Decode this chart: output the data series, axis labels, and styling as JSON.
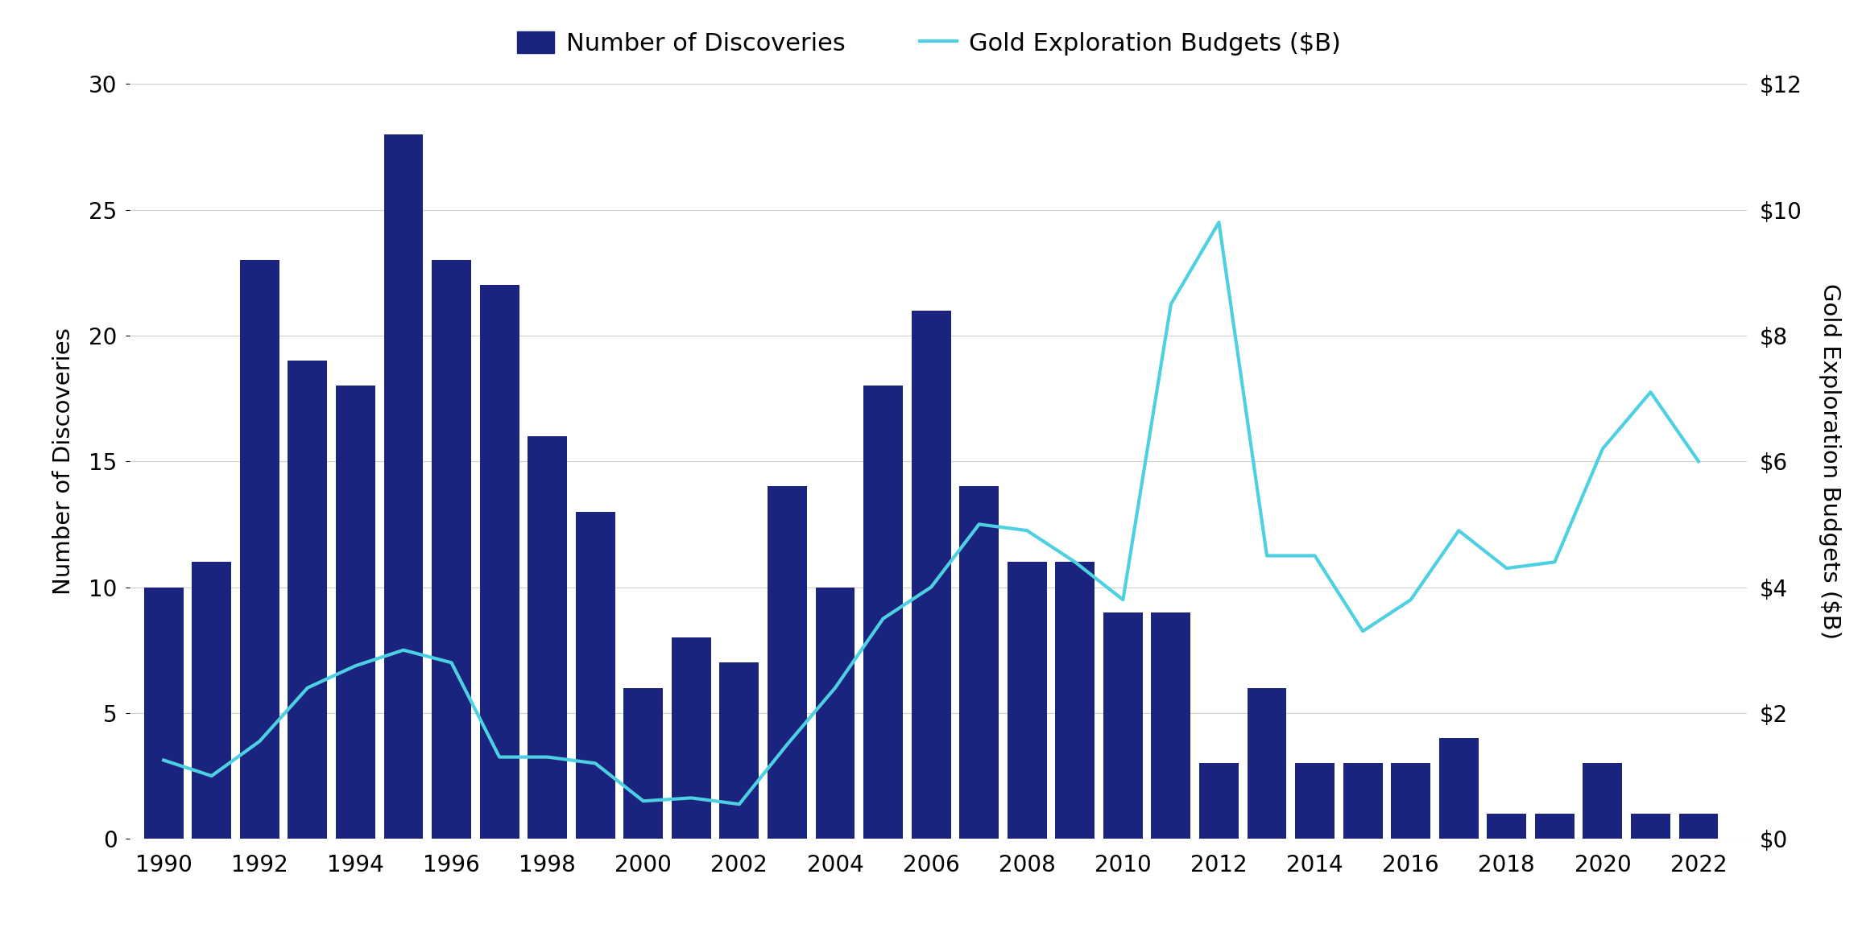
{
  "years": [
    1990,
    1991,
    1992,
    1993,
    1994,
    1995,
    1996,
    1997,
    1998,
    1999,
    2000,
    2001,
    2002,
    2003,
    2004,
    2005,
    2006,
    2007,
    2008,
    2009,
    2010,
    2011,
    2012,
    2013,
    2014,
    2015,
    2016,
    2017,
    2018,
    2019,
    2020,
    2021,
    2022
  ],
  "discoveries": [
    10,
    11,
    23,
    19,
    18,
    28,
    23,
    22,
    16,
    13,
    6,
    8,
    7,
    14,
    10,
    18,
    21,
    14,
    11,
    11,
    9,
    9,
    3,
    6,
    3,
    3,
    3,
    4,
    1,
    1,
    3,
    1,
    1
  ],
  "budgets": [
    1.25,
    1.0,
    1.55,
    2.4,
    2.75,
    3.0,
    2.8,
    1.3,
    1.3,
    1.2,
    0.6,
    0.65,
    0.55,
    1.5,
    2.4,
    3.5,
    4.0,
    5.0,
    4.9,
    4.4,
    3.8,
    8.5,
    9.8,
    4.5,
    4.5,
    3.3,
    3.8,
    4.9,
    4.3,
    4.4,
    6.2,
    7.1,
    6.0
  ],
  "bar_color": "#1a237e",
  "line_color": "#4dd0e1",
  "bar_legend": "Number of Discoveries",
  "line_legend": "Gold Exploration Budgets ($B)",
  "ylabel_left": "Number of Discoveries",
  "ylabel_right": "Gold Exploration Budgets ($B)",
  "ylim_left": [
    0,
    30
  ],
  "ylim_right": [
    0,
    12
  ],
  "yticks_left": [
    0,
    5,
    10,
    15,
    20,
    25,
    30
  ],
  "yticks_right": [
    0,
    2,
    4,
    6,
    8,
    10,
    12
  ],
  "ytick_labels_right": [
    "$0",
    "$2",
    "$4",
    "$6",
    "$8",
    "$10",
    "$12"
  ],
  "background_color": "#ffffff",
  "grid_color": "#d0d0d0",
  "figsize": [
    23.07,
    11.58
  ],
  "dpi": 100
}
